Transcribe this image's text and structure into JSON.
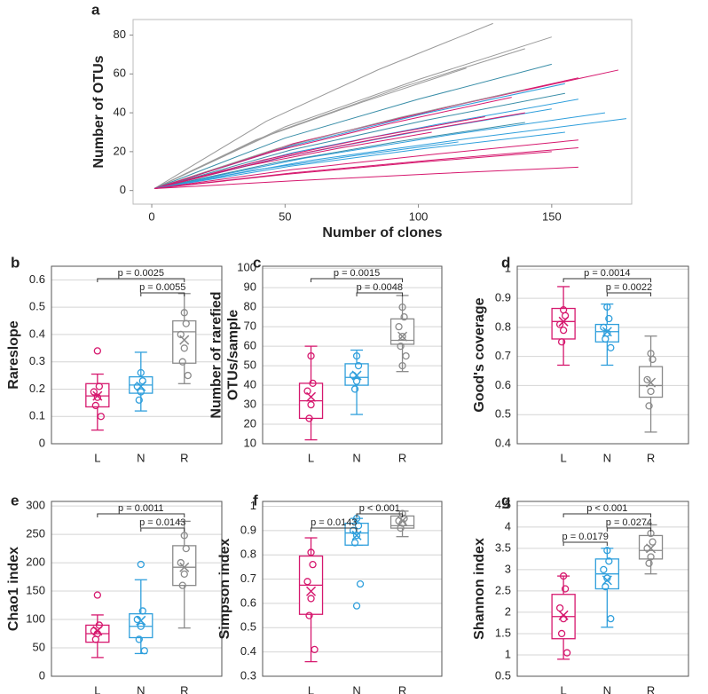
{
  "chart_data": [
    {
      "type": "line",
      "panel_label": "a",
      "xlabel": "Number of clones",
      "ylabel": "Number of OTUs",
      "xlim": [
        -7,
        180
      ],
      "ylim": [
        -7,
        88
      ],
      "xticks": [
        0,
        50,
        100,
        150
      ],
      "yticks": [
        0,
        20,
        40,
        60,
        80
      ],
      "series": [
        {
          "color": "#9a9a9a",
          "x": [
            1,
            43,
            85,
            128
          ],
          "values": [
            1,
            35.7,
            62.2,
            86
          ]
        },
        {
          "color": "#9a9a9a",
          "x": [
            1,
            50,
            100,
            150
          ],
          "values": [
            1,
            32.8,
            57.1,
            79
          ]
        },
        {
          "color": "#9a9a9a",
          "x": [
            1,
            47,
            93,
            140
          ],
          "values": [
            1,
            30.3,
            52.8,
            73
          ]
        },
        {
          "color": "#9a9a9a",
          "x": [
            1,
            39,
            79,
            118
          ],
          "values": [
            1,
            26.1,
            45.5,
            63
          ]
        },
        {
          "color": "#d6186e",
          "x": [
            1,
            58,
            117,
            175
          ],
          "values": [
            1,
            25.7,
            44.8,
            62
          ]
        },
        {
          "color": "#3a8ea8",
          "x": [
            1,
            50,
            100,
            150
          ],
          "values": [
            1,
            27,
            47,
            65
          ]
        },
        {
          "color": "#d6186e",
          "x": [
            1,
            53,
            107,
            160
          ],
          "values": [
            1,
            24.1,
            41.9,
            58
          ]
        },
        {
          "color": "#2f9fdc",
          "x": [
            1,
            52,
            103,
            155
          ],
          "values": [
            1,
            22.8,
            39.8,
            55
          ]
        },
        {
          "color": "#9a9a9a",
          "x": [
            1,
            47,
            93,
            140
          ],
          "values": [
            1,
            21.6,
            37.6,
            52
          ]
        },
        {
          "color": "#3a8ea8",
          "x": [
            1,
            52,
            103,
            155
          ],
          "values": [
            1,
            20.8,
            36.2,
            50
          ]
        },
        {
          "color": "#d6186e",
          "x": [
            1,
            45,
            90,
            135
          ],
          "values": [
            1,
            19.9,
            34.7,
            48
          ]
        },
        {
          "color": "#2f9fdc",
          "x": [
            1,
            53,
            107,
            160
          ],
          "values": [
            1,
            19.5,
            34,
            47
          ]
        },
        {
          "color": "#2f9fdc",
          "x": [
            1,
            50,
            100,
            150
          ],
          "values": [
            1,
            17.4,
            30.4,
            42
          ]
        },
        {
          "color": "#d6186e",
          "x": [
            1,
            47,
            93,
            140
          ],
          "values": [
            1,
            16.6,
            28.9,
            40
          ]
        },
        {
          "color": "#2f9fdc",
          "x": [
            1,
            57,
            113,
            170
          ],
          "values": [
            1,
            16.6,
            28.9,
            40
          ]
        },
        {
          "color": "#d6186e",
          "x": [
            1,
            42,
            83,
            125
          ],
          "values": [
            1,
            15.8,
            27.5,
            38
          ]
        },
        {
          "color": "#2f9fdc",
          "x": [
            1,
            59,
            119,
            178
          ],
          "values": [
            1,
            15.4,
            26.8,
            37
          ]
        },
        {
          "color": "#3a8ea8",
          "x": [
            1,
            47,
            93,
            140
          ],
          "values": [
            1,
            14.5,
            25.3,
            35
          ]
        },
        {
          "color": "#d6186e",
          "x": [
            1,
            35,
            70,
            105
          ],
          "values": [
            1,
            12.5,
            21.7,
            30
          ]
        },
        {
          "color": "#2f9fdc",
          "x": [
            1,
            52,
            103,
            155
          ],
          "values": [
            1,
            12.5,
            21.7,
            30
          ]
        },
        {
          "color": "#d6186e",
          "x": [
            1,
            53,
            107,
            160
          ],
          "values": [
            1,
            10.8,
            18.8,
            26
          ]
        },
        {
          "color": "#2f9fdc",
          "x": [
            1,
            38,
            77,
            115
          ],
          "values": [
            1,
            10.4,
            18.1,
            25
          ]
        },
        {
          "color": "#d6186e",
          "x": [
            1,
            53,
            107,
            160
          ],
          "values": [
            1,
            9.1,
            15.9,
            22
          ]
        },
        {
          "color": "#d6186e",
          "x": [
            1,
            50,
            100,
            150
          ],
          "values": [
            1,
            8.3,
            14.5,
            20
          ]
        },
        {
          "color": "#d6186e",
          "x": [
            1,
            53,
            107,
            160
          ],
          "values": [
            1,
            5,
            8.7,
            12
          ]
        }
      ]
    },
    {
      "type": "box",
      "panel_label": "b",
      "ylabel": [
        "Rareslope"
      ],
      "ylim": [
        0,
        0.65
      ],
      "yticks": [
        0,
        0.1,
        0.2,
        0.3,
        0.4,
        0.5,
        0.6
      ],
      "grid": true,
      "categories": [
        "L",
        "N",
        "R"
      ],
      "groups": [
        {
          "color": "#d6186e",
          "whisker_low": 0.05,
          "q1": 0.135,
          "median": 0.175,
          "q3": 0.22,
          "whisker_high": 0.255,
          "mean": 0.175,
          "points": [
            0.34,
            0.21,
            0.19,
            0.17,
            0.14,
            0.1
          ]
        },
        {
          "color": "#2f9fdc",
          "whisker_low": 0.12,
          "q1": 0.185,
          "median": 0.215,
          "q3": 0.245,
          "whisker_high": 0.335,
          "mean": 0.21,
          "points": [
            0.26,
            0.23,
            0.21,
            0.19,
            0.16
          ]
        },
        {
          "color": "#8a8a8a",
          "whisker_low": 0.22,
          "q1": 0.295,
          "median": 0.41,
          "q3": 0.45,
          "whisker_high": 0.55,
          "mean": 0.38,
          "points": [
            0.48,
            0.44,
            0.4,
            0.35,
            0.3,
            0.25
          ]
        }
      ],
      "comparisons": [
        {
          "from": "L",
          "to": "R",
          "label": "p = 0.0025"
        },
        {
          "from": "N",
          "to": "R",
          "label": "p = 0.0055"
        }
      ]
    },
    {
      "type": "box",
      "panel_label": "c",
      "ylabel": [
        "Number of rarefied",
        "OTUs/sample"
      ],
      "ylim": [
        10,
        101
      ],
      "yticks": [
        10,
        20,
        30,
        40,
        50,
        60,
        70,
        80,
        90,
        100
      ],
      "grid": true,
      "categories": [
        "L",
        "N",
        "R"
      ],
      "groups": [
        {
          "color": "#d6186e",
          "whisker_low": 12,
          "q1": 23,
          "median": 32,
          "q3": 41,
          "whisker_high": 60,
          "mean": 34,
          "points": [
            55,
            41,
            37,
            30,
            23
          ]
        },
        {
          "color": "#2f9fdc",
          "whisker_low": 25,
          "q1": 40,
          "median": 44,
          "q3": 51,
          "whisker_high": 58,
          "mean": 45,
          "points": [
            55,
            50,
            45,
            42,
            38
          ]
        },
        {
          "color": "#8a8a8a",
          "whisker_low": 47,
          "q1": 61,
          "median": 63,
          "q3": 74,
          "whisker_high": 86,
          "mean": 65,
          "points": [
            80,
            75,
            70,
            65,
            60,
            55,
            50
          ]
        }
      ],
      "comparisons": [
        {
          "from": "L",
          "to": "R",
          "label": "p = 0.0015"
        },
        {
          "from": "N",
          "to": "R",
          "label": "p = 0.0048"
        }
      ]
    },
    {
      "type": "box",
      "panel_label": "d",
      "ylabel": [
        "Good's coverage"
      ],
      "ylim": [
        0.4,
        1.01
      ],
      "yticks": [
        0.4,
        0.5,
        0.6,
        0.7,
        0.8,
        0.9,
        1
      ],
      "grid": true,
      "categories": [
        "L",
        "N",
        "R"
      ],
      "groups": [
        {
          "color": "#d6186e",
          "whisker_low": 0.67,
          "q1": 0.76,
          "median": 0.82,
          "q3": 0.865,
          "whisker_high": 0.94,
          "mean": 0.82,
          "points": [
            0.86,
            0.84,
            0.81,
            0.79,
            0.75
          ]
        },
        {
          "color": "#2f9fdc",
          "whisker_low": 0.67,
          "q1": 0.75,
          "median": 0.785,
          "q3": 0.81,
          "whisker_high": 0.88,
          "mean": 0.785,
          "points": [
            0.87,
            0.83,
            0.8,
            0.78,
            0.76,
            0.73
          ]
        },
        {
          "color": "#8a8a8a",
          "whisker_low": 0.44,
          "q1": 0.56,
          "median": 0.6,
          "q3": 0.665,
          "whisker_high": 0.77,
          "mean": 0.61,
          "points": [
            0.71,
            0.69,
            0.62,
            0.58,
            0.53
          ]
        }
      ],
      "comparisons": [
        {
          "from": "L",
          "to": "R",
          "label": "p = 0.0014"
        },
        {
          "from": "N",
          "to": "R",
          "label": "p = 0.0022"
        }
      ]
    },
    {
      "type": "box",
      "panel_label": "e",
      "ylabel": [
        "Chao1 index"
      ],
      "ylim": [
        0,
        308
      ],
      "yticks": [
        0,
        50,
        100,
        150,
        200,
        250,
        300
      ],
      "grid": true,
      "categories": [
        "L",
        "N",
        "R"
      ],
      "groups": [
        {
          "color": "#d6186e",
          "whisker_low": 33,
          "q1": 60,
          "median": 75,
          "q3": 90,
          "whisker_high": 108,
          "mean": 80,
          "points": [
            143,
            90,
            80,
            75,
            65
          ]
        },
        {
          "color": "#2f9fdc",
          "whisker_low": 40,
          "q1": 68,
          "median": 88,
          "q3": 110,
          "whisker_high": 170,
          "mean": 98,
          "points": [
            197,
            115,
            100,
            88,
            65,
            45
          ]
        },
        {
          "color": "#8a8a8a",
          "whisker_low": 85,
          "q1": 160,
          "median": 192,
          "q3": 230,
          "whisker_high": 273,
          "mean": 192,
          "points": [
            248,
            225,
            200,
            180,
            160
          ]
        }
      ],
      "comparisons": [
        {
          "from": "L",
          "to": "R",
          "label": "p = 0.0011"
        },
        {
          "from": "N",
          "to": "R",
          "label": "p = 0.0143"
        }
      ]
    },
    {
      "type": "box",
      "panel_label": "f",
      "ylabel": [
        "Simpson index"
      ],
      "ylim": [
        0.3,
        1.02
      ],
      "yticks": [
        0.3,
        0.4,
        0.5,
        0.6,
        0.7,
        0.8,
        0.9,
        1
      ],
      "grid": true,
      "categories": [
        "L",
        "N",
        "R"
      ],
      "groups": [
        {
          "color": "#d6186e",
          "whisker_low": 0.36,
          "q1": 0.555,
          "median": 0.675,
          "q3": 0.795,
          "whisker_high": 0.87,
          "mean": 0.65,
          "points": [
            0.81,
            0.76,
            0.69,
            0.62,
            0.55,
            0.41
          ]
        },
        {
          "color": "#2f9fdc",
          "whisker_low": 0.84,
          "q1": 0.84,
          "median": 0.89,
          "q3": 0.93,
          "whisker_high": 0.95,
          "mean": 0.88,
          "points": [
            0.95,
            0.92,
            0.9,
            0.88,
            0.85,
            0.68,
            0.59
          ]
        },
        {
          "color": "#8a8a8a",
          "whisker_low": 0.875,
          "q1": 0.91,
          "median": 0.92,
          "q3": 0.96,
          "whisker_high": 0.98,
          "mean": 0.94,
          "points": [
            0.97,
            0.95,
            0.94,
            0.93,
            0.91
          ]
        }
      ],
      "comparisons": [
        {
          "from": "N",
          "to": "R",
          "label": "p < 0.001"
        },
        {
          "from": "L",
          "to": "N",
          "label": "p = 0.0143"
        }
      ]
    },
    {
      "type": "box",
      "panel_label": "g",
      "ylabel": [
        "Shannon index"
      ],
      "ylim": [
        0.5,
        4.6
      ],
      "yticks": [
        0.5,
        1,
        1.5,
        2,
        2.5,
        3,
        3.5,
        4,
        4.5
      ],
      "grid": true,
      "categories": [
        "L",
        "N",
        "R"
      ],
      "groups": [
        {
          "color": "#d6186e",
          "whisker_low": 0.9,
          "q1": 1.38,
          "median": 1.9,
          "q3": 2.42,
          "whisker_high": 2.85,
          "mean": 1.93,
          "points": [
            2.85,
            2.55,
            2.1,
            1.85,
            1.5,
            1.05
          ]
        },
        {
          "color": "#2f9fdc",
          "whisker_low": 1.65,
          "q1": 2.55,
          "median": 2.9,
          "q3": 3.25,
          "whisker_high": 3.5,
          "mean": 2.75,
          "points": [
            3.45,
            3.2,
            3,
            2.8,
            2.6,
            1.85
          ]
        },
        {
          "color": "#8a8a8a",
          "whisker_low": 2.9,
          "q1": 3.25,
          "median": 3.45,
          "q3": 3.8,
          "whisker_high": 4.05,
          "mean": 3.5,
          "points": [
            3.85,
            3.65,
            3.5,
            3.3,
            3.15
          ]
        }
      ],
      "comparisons": [
        {
          "from": "L",
          "to": "R",
          "label": "p < 0.001"
        },
        {
          "from": "N",
          "to": "R",
          "label": "p = 0.0274"
        },
        {
          "from": "L",
          "to": "N",
          "label": "p = 0.0179"
        }
      ]
    }
  ]
}
